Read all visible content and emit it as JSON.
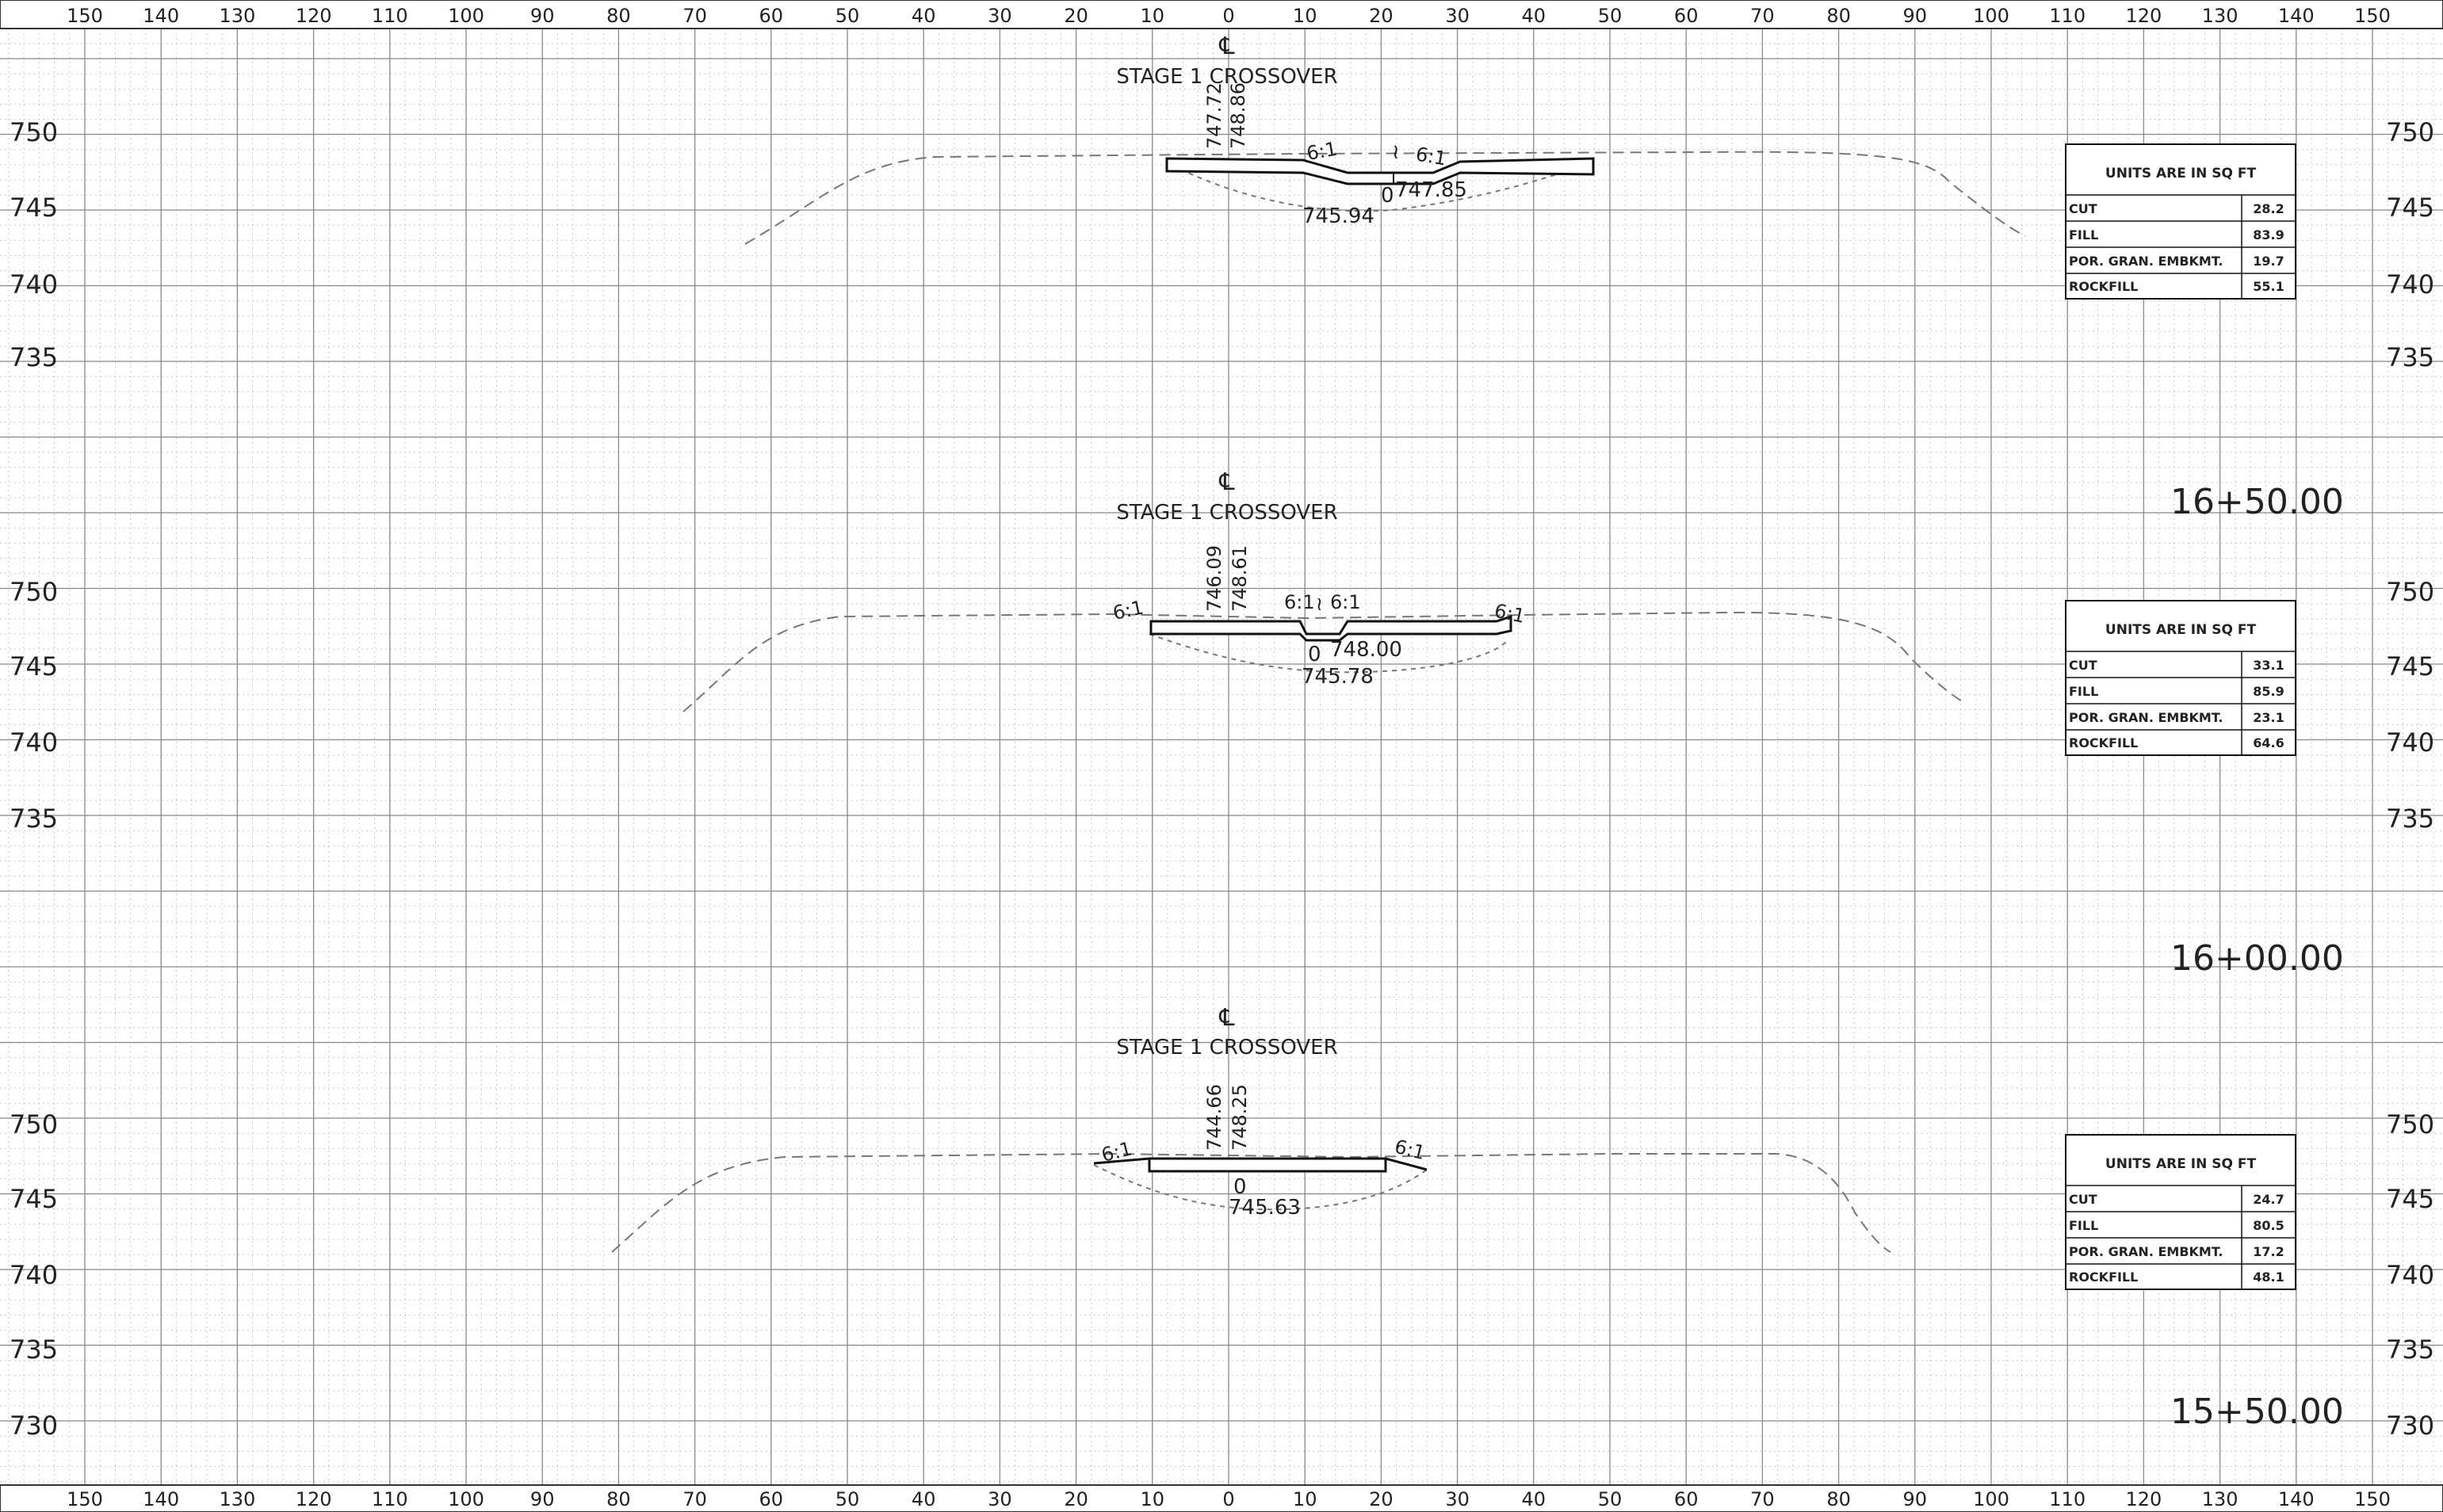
{
  "rulers": {
    "top": [
      "150",
      "140",
      "130",
      "120",
      "110",
      "100",
      "90",
      "80",
      "70",
      "60",
      "50",
      "40",
      "30",
      "20",
      "10",
      "0",
      "10",
      "20",
      "30",
      "40",
      "50",
      "60",
      "70",
      "80",
      "90",
      "100",
      "110",
      "120",
      "130",
      "140",
      "150"
    ],
    "bottom": [
      "150",
      "140",
      "130",
      "120",
      "110",
      "100",
      "90",
      "80",
      "70",
      "60",
      "50",
      "40",
      "30",
      "20",
      "10",
      "0",
      "10",
      "20",
      "30",
      "40",
      "50",
      "60",
      "70",
      "80",
      "90",
      "100",
      "110",
      "120",
      "130",
      "140",
      "150"
    ]
  },
  "sections": [
    {
      "station": "",
      "title": "STAGE 1 CROSSOVER",
      "centerline_symbol": "℄",
      "elev_labels": [
        "750",
        "745",
        "740",
        "735"
      ],
      "vertical_labels": [
        "747.72",
        "748.86"
      ],
      "point_labels": [
        "747.85",
        "745.94",
        "0"
      ],
      "slopes": [
        "6:1",
        "6:1"
      ],
      "quantities": {
        "header": "UNITS ARE IN SQ FT",
        "rows": [
          {
            "label": "CUT",
            "value": "28.2"
          },
          {
            "label": "FILL",
            "value": "83.9"
          },
          {
            "label": "POR. GRAN. EMBKMT.",
            "value": "19.7"
          },
          {
            "label": "ROCKFILL",
            "value": "55.1"
          }
        ]
      }
    },
    {
      "station": "16+50.00",
      "title": "STAGE 1 CROSSOVER",
      "centerline_symbol": "℄",
      "elev_labels": [
        "750",
        "745",
        "740",
        "735"
      ],
      "vertical_labels": [
        "746.09",
        "748.61"
      ],
      "point_labels": [
        "748.00",
        "745.78",
        "0"
      ],
      "slopes": [
        "6:1",
        "6:1",
        "6:1",
        "6:1"
      ],
      "quantities": {
        "header": "UNITS ARE IN SQ FT",
        "rows": [
          {
            "label": "CUT",
            "value": "33.1"
          },
          {
            "label": "FILL",
            "value": "85.9"
          },
          {
            "label": "POR. GRAN. EMBKMT.",
            "value": "23.1"
          },
          {
            "label": "ROCKFILL",
            "value": "64.6"
          }
        ]
      }
    },
    {
      "station": "16+00.00",
      "title": "STAGE 1 CROSSOVER",
      "centerline_symbol": "℄",
      "elev_labels": [
        "750",
        "745",
        "740",
        "735",
        "730"
      ],
      "vertical_labels": [
        "744.66",
        "748.25"
      ],
      "point_labels": [
        "745.63",
        "0"
      ],
      "slopes": [
        "6:1",
        "6:1"
      ],
      "quantities": {
        "header": "UNITS ARE IN SQ FT",
        "rows": [
          {
            "label": "CUT",
            "value": "24.7"
          },
          {
            "label": "FILL",
            "value": "80.5"
          },
          {
            "label": "POR. GRAN. EMBKMT.",
            "value": "17.2"
          },
          {
            "label": "ROCKFILL",
            "value": "48.1"
          }
        ]
      }
    }
  ],
  "bottom_station": "15+50.00"
}
